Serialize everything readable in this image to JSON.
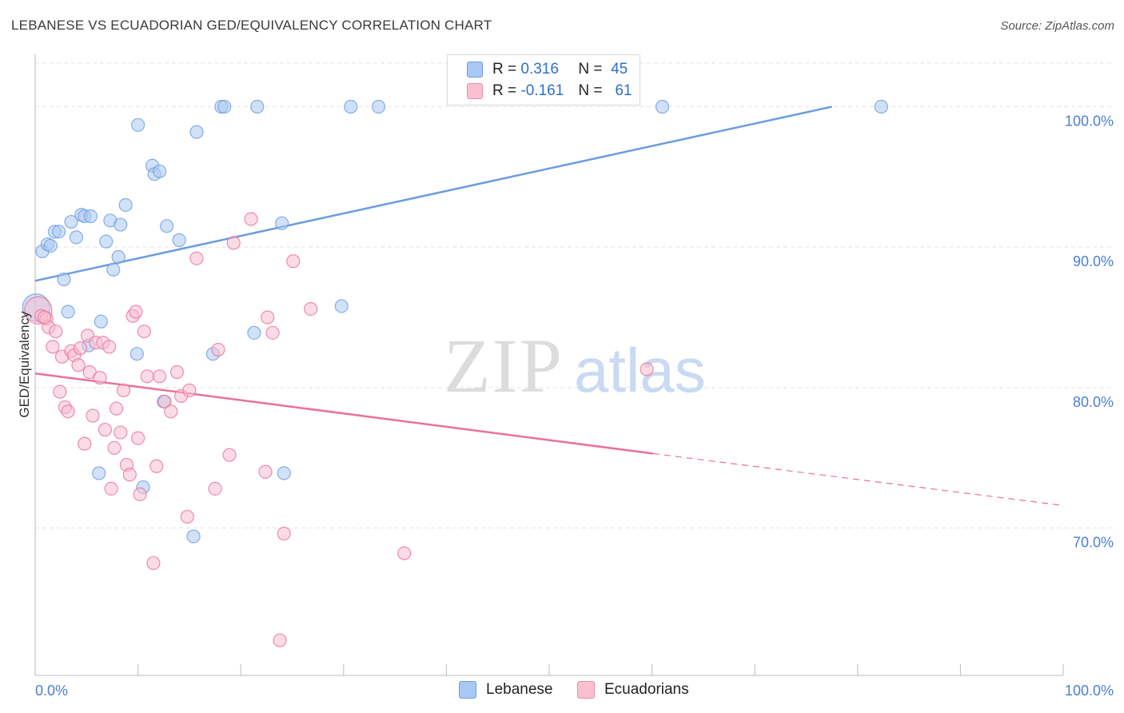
{
  "title": "LEBANESE VS ECUADORIAN GED/EQUIVALENCY CORRELATION CHART",
  "source": "Source: ZipAtlas.com",
  "watermark": {
    "zip": "ZIP",
    "atlas": "atlas"
  },
  "legend": {
    "rows": [
      {
        "r_label": "R =",
        "r_value": "0.316",
        "n_label": "N =",
        "n_value": "45",
        "color": "#a9c8f3",
        "border": "#6c9de0"
      },
      {
        "r_label": "R =",
        "r_value": "-0.161",
        "n_label": "N =",
        "n_value": "61",
        "color": "#f8c0d0",
        "border": "#ec8fab"
      }
    ]
  },
  "bottom_legend": [
    {
      "label": "Lebanese",
      "color": "#a9c8f3",
      "border": "#6c9de0"
    },
    {
      "label": "Ecuadorians",
      "color": "#f8c0d0",
      "border": "#ec8fab"
    }
  ],
  "chart_data": {
    "type": "scatter",
    "title": "LEBANESE VS ECUADORIAN GED/EQUIVALENCY CORRELATION CHART",
    "xlabel": "",
    "ylabel": "GED/Equivalency",
    "xlim": [
      0,
      100
    ],
    "ylim": [
      59.5,
      103.5
    ],
    "x_tick_labels": [
      "0.0%",
      "100.0%"
    ],
    "y_ticks": [
      70,
      80,
      90,
      100
    ],
    "y_tick_labels": [
      "70.0%",
      "80.0%",
      "90.0%",
      "100.0%"
    ],
    "grid": true,
    "series": [
      {
        "name": "Lebanese",
        "color": "#6c9de0",
        "fill": "#a9c8f3",
        "trend": {
          "x": [
            0,
            77.5
          ],
          "y": [
            87.6,
            100.0
          ],
          "dashed_to": null
        },
        "points": [
          {
            "x": 0.1,
            "y": 85.7,
            "big": true
          },
          {
            "x": 0.7,
            "y": 89.7
          },
          {
            "x": 1.2,
            "y": 90.2
          },
          {
            "x": 1.5,
            "y": 90.1
          },
          {
            "x": 1.9,
            "y": 91.1
          },
          {
            "x": 2.3,
            "y": 91.1
          },
          {
            "x": 2.8,
            "y": 87.7
          },
          {
            "x": 3.2,
            "y": 85.4
          },
          {
            "x": 3.5,
            "y": 91.8
          },
          {
            "x": 4.0,
            "y": 90.7
          },
          {
            "x": 4.5,
            "y": 92.3
          },
          {
            "x": 4.8,
            "y": 92.2
          },
          {
            "x": 5.4,
            "y": 92.2
          },
          {
            "x": 5.2,
            "y": 83.0
          },
          {
            "x": 6.4,
            "y": 84.7
          },
          {
            "x": 6.2,
            "y": 73.9
          },
          {
            "x": 6.9,
            "y": 90.4
          },
          {
            "x": 7.3,
            "y": 91.9
          },
          {
            "x": 7.6,
            "y": 88.4
          },
          {
            "x": 8.1,
            "y": 89.3
          },
          {
            "x": 8.3,
            "y": 91.6
          },
          {
            "x": 8.8,
            "y": 93.0
          },
          {
            "x": 10.0,
            "y": 98.7
          },
          {
            "x": 9.9,
            "y": 82.4
          },
          {
            "x": 10.5,
            "y": 72.9
          },
          {
            "x": 11.4,
            "y": 95.8
          },
          {
            "x": 11.6,
            "y": 95.2
          },
          {
            "x": 12.1,
            "y": 95.4
          },
          {
            "x": 12.8,
            "y": 91.5
          },
          {
            "x": 12.5,
            "y": 79.0
          },
          {
            "x": 14.0,
            "y": 90.5
          },
          {
            "x": 15.4,
            "y": 69.4
          },
          {
            "x": 15.7,
            "y": 98.2
          },
          {
            "x": 17.3,
            "y": 82.4
          },
          {
            "x": 18.1,
            "y": 100.0
          },
          {
            "x": 18.4,
            "y": 100.0
          },
          {
            "x": 21.3,
            "y": 83.9
          },
          {
            "x": 21.6,
            "y": 100.0
          },
          {
            "x": 24.0,
            "y": 91.7
          },
          {
            "x": 24.2,
            "y": 73.9
          },
          {
            "x": 29.8,
            "y": 85.8
          },
          {
            "x": 30.7,
            "y": 100.0
          },
          {
            "x": 33.4,
            "y": 100.0
          },
          {
            "x": 61.0,
            "y": 100.0
          },
          {
            "x": 82.3,
            "y": 100.0
          }
        ]
      },
      {
        "name": "Ecuadorians",
        "color": "#e8729a",
        "fill": "#f8c0d0",
        "trend": {
          "x": [
            0,
            60.1
          ],
          "y": [
            81.0,
            75.3
          ],
          "dashed_to": [
            100,
            71.6
          ]
        },
        "points": [
          {
            "x": 0.3,
            "y": 85.5,
            "big": true
          },
          {
            "x": 0.6,
            "y": 85.1
          },
          {
            "x": 1.1,
            "y": 84.9
          },
          {
            "x": 1.3,
            "y": 84.3
          },
          {
            "x": 1.7,
            "y": 82.9
          },
          {
            "x": 2.0,
            "y": 84.0
          },
          {
            "x": 2.4,
            "y": 79.7
          },
          {
            "x": 2.6,
            "y": 82.2
          },
          {
            "x": 2.9,
            "y": 78.6
          },
          {
            "x": 3.2,
            "y": 78.3
          },
          {
            "x": 3.5,
            "y": 82.6
          },
          {
            "x": 3.8,
            "y": 82.3
          },
          {
            "x": 4.2,
            "y": 81.6
          },
          {
            "x": 4.4,
            "y": 82.8
          },
          {
            "x": 4.8,
            "y": 76.0
          },
          {
            "x": 5.1,
            "y": 83.7
          },
          {
            "x": 5.3,
            "y": 81.1
          },
          {
            "x": 5.6,
            "y": 78.0
          },
          {
            "x": 5.9,
            "y": 83.2
          },
          {
            "x": 6.3,
            "y": 80.7
          },
          {
            "x": 6.6,
            "y": 83.2
          },
          {
            "x": 6.8,
            "y": 77.0
          },
          {
            "x": 7.2,
            "y": 82.9
          },
          {
            "x": 7.4,
            "y": 72.8
          },
          {
            "x": 7.7,
            "y": 75.7
          },
          {
            "x": 7.9,
            "y": 78.5
          },
          {
            "x": 8.3,
            "y": 76.8
          },
          {
            "x": 8.6,
            "y": 79.8
          },
          {
            "x": 8.9,
            "y": 74.5
          },
          {
            "x": 9.2,
            "y": 73.8
          },
          {
            "x": 9.5,
            "y": 85.1
          },
          {
            "x": 9.8,
            "y": 85.4
          },
          {
            "x": 10.0,
            "y": 76.4
          },
          {
            "x": 10.2,
            "y": 72.4
          },
          {
            "x": 10.6,
            "y": 84.0
          },
          {
            "x": 10.9,
            "y": 80.8
          },
          {
            "x": 11.5,
            "y": 67.5
          },
          {
            "x": 11.8,
            "y": 74.4
          },
          {
            "x": 12.1,
            "y": 80.8
          },
          {
            "x": 12.6,
            "y": 79.0
          },
          {
            "x": 13.2,
            "y": 78.3
          },
          {
            "x": 13.8,
            "y": 81.1
          },
          {
            "x": 14.2,
            "y": 79.4
          },
          {
            "x": 14.8,
            "y": 70.8
          },
          {
            "x": 15.0,
            "y": 79.8
          },
          {
            "x": 15.7,
            "y": 89.2
          },
          {
            "x": 17.5,
            "y": 72.8
          },
          {
            "x": 17.8,
            "y": 82.7
          },
          {
            "x": 18.9,
            "y": 75.2
          },
          {
            "x": 19.3,
            "y": 90.3
          },
          {
            "x": 21.0,
            "y": 92.0
          },
          {
            "x": 22.4,
            "y": 74.0
          },
          {
            "x": 22.6,
            "y": 85.0
          },
          {
            "x": 23.1,
            "y": 83.9
          },
          {
            "x": 23.8,
            "y": 62.0
          },
          {
            "x": 24.2,
            "y": 69.6
          },
          {
            "x": 25.1,
            "y": 89.0
          },
          {
            "x": 26.8,
            "y": 85.6
          },
          {
            "x": 35.9,
            "y": 68.2
          },
          {
            "x": 59.5,
            "y": 81.3
          },
          {
            "x": 0.9,
            "y": 85.0
          }
        ]
      }
    ]
  }
}
